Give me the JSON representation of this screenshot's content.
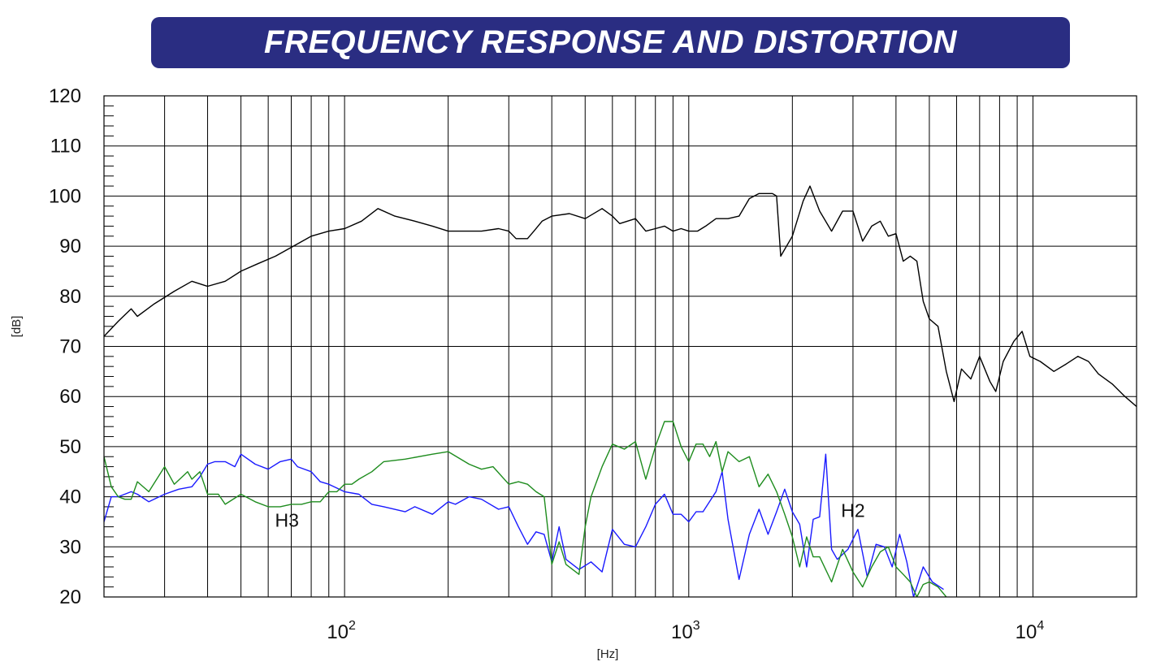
{
  "header": {
    "title": "FREQUENCY RESPONSE AND DISTORTION"
  },
  "chart_data": {
    "type": "line",
    "title": "FREQUENCY RESPONSE AND DISTORTION",
    "xlabel": "[Hz]",
    "ylabel": "[dB]",
    "xscale": "log",
    "xlim": [
      20,
      20000
    ],
    "ylim": [
      20,
      120
    ],
    "yticks": [
      20,
      30,
      40,
      50,
      60,
      70,
      80,
      90,
      100,
      110,
      120
    ],
    "xticks": [
      {
        "value": 100,
        "base": "10",
        "exp": "2"
      },
      {
        "value": 1000,
        "base": "10",
        "exp": "3"
      },
      {
        "value": 10000,
        "base": "10",
        "exp": "4"
      }
    ],
    "grid": true,
    "annotations": [
      {
        "text": "H3",
        "x": 68,
        "y": 34
      },
      {
        "text": "H2",
        "x": 3000,
        "y": 36
      }
    ],
    "series": [
      {
        "color": "#000000",
        "points": [
          [
            20,
            72
          ],
          [
            22,
            75
          ],
          [
            24,
            77.5
          ],
          [
            25,
            76
          ],
          [
            28,
            78.5
          ],
          [
            32,
            81
          ],
          [
            36,
            83
          ],
          [
            40,
            82
          ],
          [
            45,
            83
          ],
          [
            50,
            85
          ],
          [
            56,
            86.5
          ],
          [
            63,
            88
          ],
          [
            71,
            90
          ],
          [
            80,
            92
          ],
          [
            90,
            93
          ],
          [
            100,
            93.5
          ],
          [
            112,
            95
          ],
          [
            125,
            97.5
          ],
          [
            140,
            96
          ],
          [
            160,
            95
          ],
          [
            180,
            94
          ],
          [
            200,
            93
          ],
          [
            225,
            93
          ],
          [
            250,
            93
          ],
          [
            280,
            93.5
          ],
          [
            300,
            93
          ],
          [
            315,
            91.5
          ],
          [
            340,
            91.5
          ],
          [
            355,
            93
          ],
          [
            375,
            95
          ],
          [
            400,
            96
          ],
          [
            450,
            96.5
          ],
          [
            500,
            95.5
          ],
          [
            560,
            97.5
          ],
          [
            600,
            96
          ],
          [
            630,
            94.5
          ],
          [
            700,
            95.5
          ],
          [
            750,
            93
          ],
          [
            800,
            93.5
          ],
          [
            850,
            94
          ],
          [
            900,
            93
          ],
          [
            950,
            93.5
          ],
          [
            1000,
            93
          ],
          [
            1060,
            93
          ],
          [
            1120,
            94
          ],
          [
            1200,
            95.5
          ],
          [
            1300,
            95.5
          ],
          [
            1400,
            96
          ],
          [
            1500,
            99.5
          ],
          [
            1600,
            100.5
          ],
          [
            1750,
            100.5
          ],
          [
            1800,
            100
          ],
          [
            1850,
            88
          ],
          [
            2000,
            92
          ],
          [
            2150,
            99
          ],
          [
            2250,
            102
          ],
          [
            2400,
            97
          ],
          [
            2600,
            93
          ],
          [
            2800,
            97
          ],
          [
            3000,
            97
          ],
          [
            3200,
            91
          ],
          [
            3400,
            94
          ],
          [
            3600,
            95
          ],
          [
            3800,
            92
          ],
          [
            4000,
            92.5
          ],
          [
            4200,
            87
          ],
          [
            4400,
            88
          ],
          [
            4600,
            87
          ],
          [
            4800,
            79
          ],
          [
            5000,
            75.5
          ],
          [
            5300,
            74
          ],
          [
            5600,
            65
          ],
          [
            5900,
            59
          ],
          [
            6200,
            65.5
          ],
          [
            6600,
            63.5
          ],
          [
            7000,
            68
          ],
          [
            7500,
            63
          ],
          [
            7800,
            61
          ],
          [
            8200,
            67
          ],
          [
            8800,
            71
          ],
          [
            9300,
            73
          ],
          [
            9800,
            68
          ],
          [
            10500,
            67
          ],
          [
            11500,
            65
          ],
          [
            12500,
            66.5
          ],
          [
            13500,
            68
          ],
          [
            14500,
            67
          ],
          [
            15500,
            64.5
          ],
          [
            17000,
            62.5
          ],
          [
            18500,
            60
          ],
          [
            20000,
            58
          ]
        ]
      },
      {
        "color": "#1a1aff",
        "points": [
          [
            20,
            35
          ],
          [
            21,
            40
          ],
          [
            22,
            40
          ],
          [
            24,
            41
          ],
          [
            25,
            40.5
          ],
          [
            27,
            39
          ],
          [
            30,
            40.5
          ],
          [
            33,
            41.5
          ],
          [
            36,
            42
          ],
          [
            38,
            44
          ],
          [
            40,
            46.5
          ],
          [
            42,
            47
          ],
          [
            45,
            47
          ],
          [
            48,
            46
          ],
          [
            50,
            48.5
          ],
          [
            55,
            46.5
          ],
          [
            60,
            45.5
          ],
          [
            65,
            47
          ],
          [
            70,
            47.5
          ],
          [
            73,
            46
          ],
          [
            80,
            45
          ],
          [
            85,
            43
          ],
          [
            90,
            42.5
          ],
          [
            100,
            41
          ],
          [
            110,
            40.5
          ],
          [
            120,
            38.5
          ],
          [
            130,
            38
          ],
          [
            150,
            37
          ],
          [
            160,
            38
          ],
          [
            180,
            36.5
          ],
          [
            200,
            39
          ],
          [
            210,
            38.5
          ],
          [
            230,
            40
          ],
          [
            250,
            39.5
          ],
          [
            280,
            37.5
          ],
          [
            300,
            38
          ],
          [
            320,
            34
          ],
          [
            340,
            30.5
          ],
          [
            360,
            33
          ],
          [
            380,
            32.5
          ],
          [
            400,
            27
          ],
          [
            420,
            34
          ],
          [
            440,
            27.5
          ],
          [
            480,
            25.5
          ],
          [
            520,
            27
          ],
          [
            560,
            25
          ],
          [
            600,
            33.5
          ],
          [
            650,
            30.5
          ],
          [
            700,
            30
          ],
          [
            750,
            34
          ],
          [
            800,
            38.5
          ],
          [
            850,
            40.5
          ],
          [
            900,
            36.5
          ],
          [
            950,
            36.5
          ],
          [
            1000,
            35
          ],
          [
            1050,
            37
          ],
          [
            1100,
            37
          ],
          [
            1200,
            41
          ],
          [
            1250,
            45
          ],
          [
            1300,
            35.5
          ],
          [
            1400,
            23.5
          ],
          [
            1500,
            32.5
          ],
          [
            1600,
            37.5
          ],
          [
            1700,
            32.5
          ],
          [
            1800,
            37
          ],
          [
            1900,
            41.5
          ],
          [
            2000,
            37
          ],
          [
            2100,
            34.5
          ],
          [
            2200,
            26
          ],
          [
            2300,
            35.5
          ],
          [
            2400,
            36
          ],
          [
            2500,
            48.5
          ],
          [
            2600,
            29.5
          ],
          [
            2700,
            27.5
          ],
          [
            2900,
            29.5
          ],
          [
            3100,
            33.5
          ],
          [
            3300,
            24
          ],
          [
            3500,
            30.5
          ],
          [
            3700,
            30
          ],
          [
            3900,
            26
          ],
          [
            4100,
            32.5
          ],
          [
            4300,
            27
          ],
          [
            4500,
            20
          ],
          [
            4800,
            26
          ],
          [
            5100,
            23
          ],
          [
            5500,
            21.5
          ]
        ]
      },
      {
        "color": "#1e8c1e",
        "points": [
          [
            20,
            48
          ],
          [
            21,
            42
          ],
          [
            22,
            40
          ],
          [
            23,
            39.5
          ],
          [
            24,
            39.5
          ],
          [
            25,
            43
          ],
          [
            27,
            41
          ],
          [
            30,
            46
          ],
          [
            32,
            42.5
          ],
          [
            35,
            45
          ],
          [
            36,
            43.5
          ],
          [
            38,
            45
          ],
          [
            40,
            40.5
          ],
          [
            43,
            40.5
          ],
          [
            45,
            38.5
          ],
          [
            50,
            40.5
          ],
          [
            55,
            39
          ],
          [
            60,
            38
          ],
          [
            65,
            38
          ],
          [
            70,
            38.5
          ],
          [
            75,
            38.5
          ],
          [
            80,
            39
          ],
          [
            85,
            39
          ],
          [
            90,
            41
          ],
          [
            95,
            41
          ],
          [
            100,
            42.5
          ],
          [
            105,
            42.5
          ],
          [
            110,
            43.5
          ],
          [
            120,
            45
          ],
          [
            130,
            47
          ],
          [
            150,
            47.5
          ],
          [
            180,
            48.5
          ],
          [
            200,
            49
          ],
          [
            230,
            46.5
          ],
          [
            250,
            45.5
          ],
          [
            270,
            46
          ],
          [
            300,
            42.5
          ],
          [
            320,
            43
          ],
          [
            340,
            42.5
          ],
          [
            360,
            41
          ],
          [
            380,
            40
          ],
          [
            400,
            26.5
          ],
          [
            420,
            31
          ],
          [
            440,
            26.5
          ],
          [
            480,
            24.5
          ],
          [
            500,
            34
          ],
          [
            520,
            40
          ],
          [
            560,
            46
          ],
          [
            600,
            50.5
          ],
          [
            650,
            49.5
          ],
          [
            700,
            51
          ],
          [
            750,
            43.5
          ],
          [
            800,
            50
          ],
          [
            850,
            55
          ],
          [
            900,
            55
          ],
          [
            950,
            50
          ],
          [
            1000,
            47
          ],
          [
            1050,
            50.5
          ],
          [
            1100,
            50.5
          ],
          [
            1150,
            48
          ],
          [
            1200,
            51
          ],
          [
            1250,
            45
          ],
          [
            1300,
            49
          ],
          [
            1400,
            47
          ],
          [
            1500,
            48
          ],
          [
            1600,
            42
          ],
          [
            1700,
            44.5
          ],
          [
            1800,
            41
          ],
          [
            1900,
            36.5
          ],
          [
            2000,
            32
          ],
          [
            2100,
            26
          ],
          [
            2200,
            32
          ],
          [
            2300,
            28
          ],
          [
            2400,
            28
          ],
          [
            2600,
            23
          ],
          [
            2800,
            29.5
          ],
          [
            3000,
            25
          ],
          [
            3200,
            22
          ],
          [
            3400,
            26
          ],
          [
            3600,
            29
          ],
          [
            3800,
            30
          ],
          [
            4000,
            26
          ],
          [
            4200,
            24.5
          ],
          [
            4400,
            23
          ],
          [
            4600,
            20
          ],
          [
            4800,
            22.5
          ],
          [
            5000,
            23
          ],
          [
            5300,
            22
          ],
          [
            5600,
            20
          ]
        ]
      }
    ]
  }
}
